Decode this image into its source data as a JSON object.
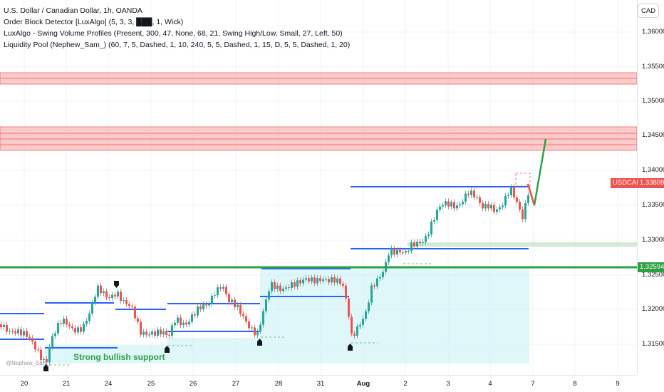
{
  "legend": {
    "title": "U.S. Dollar / Canadian Dollar, 1h, OANDA",
    "indicators": [
      "Order Block Detector [LuxAlgo] (5, 3, 3, ███, 1, Wick)",
      "LuxAlgo - Swing Volume Profiles (Present, 300, 47, None, 68, 21, Swing High/Low, Small, 27, Left, 50)",
      "Liquidity Pool (Nephew_Sam_) (60, 7, 5, Dashed, 1, 10, 240, 5, 5, Dashed, 1, 15, D, 5, 5, Dashed, 1, 20)"
    ]
  },
  "currency_button": "CAD",
  "price_axis": {
    "ticks": [
      "1.36000",
      "1.35500",
      "1.35000",
      "1.34500",
      "1.34000",
      "1.33500",
      "1.33000",
      "1.32500",
      "1.32000",
      "1.31500"
    ],
    "current_symbol": "USDCAD",
    "current_price": "1.33809",
    "level_price": "1.32594"
  },
  "time_axis": {
    "labels": [
      "20",
      "21",
      "24",
      "25",
      "26",
      "27",
      "28",
      "31",
      "Aug",
      "2",
      "3",
      "4",
      "7",
      "8",
      "9"
    ]
  },
  "annotation": "Strong bullish support",
  "watermark": "@Nephew_Sam_",
  "colors": {
    "up": "#26a69a",
    "down": "#ef5350",
    "level": "#2ea043",
    "zone": "#f7a1a1",
    "support_zone": "#b2ebf2",
    "swing_line": "#2962ff"
  }
}
